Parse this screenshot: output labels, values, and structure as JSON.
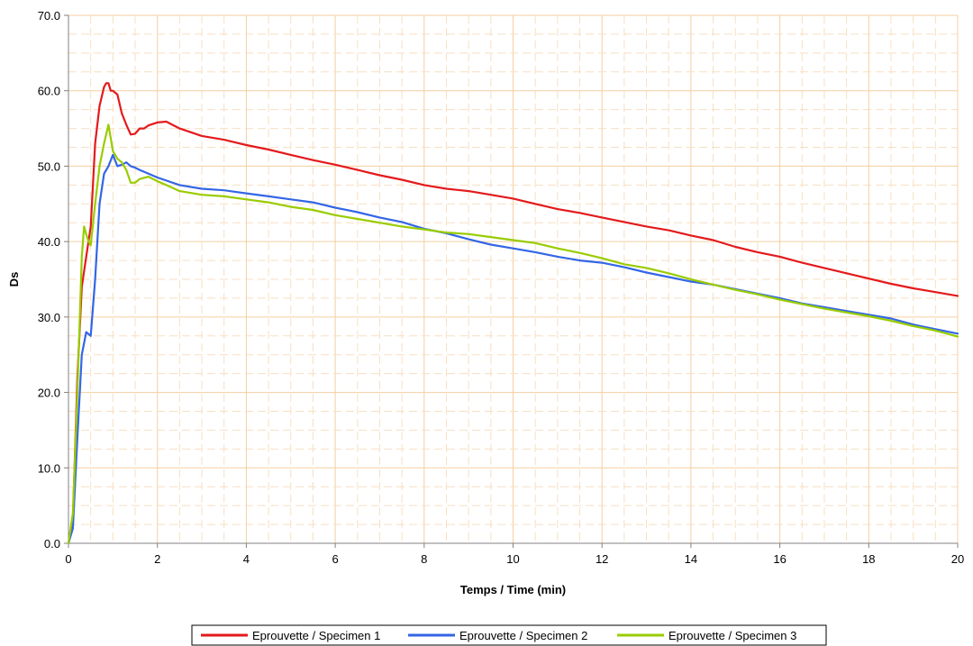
{
  "chart_data": {
    "type": "line",
    "xlabel": "Temps / Time (min)",
    "ylabel": "Ds",
    "xlim": [
      0,
      20
    ],
    "ylim": [
      0,
      70
    ],
    "x_ticks": [
      "0",
      "2",
      "4",
      "6",
      "8",
      "10",
      "12",
      "14",
      "16",
      "18",
      "20"
    ],
    "y_ticks": [
      "0.0",
      "10.0",
      "20.0",
      "30.0",
      "40.0",
      "50.0",
      "60.0",
      "70.0"
    ],
    "grid": true,
    "legend_position": "bottom",
    "colors": {
      "grid_major": "#f5cfa0",
      "grid_minor": "#f8dfc2",
      "axis": "#808080"
    },
    "series": [
      {
        "name": "Eprouvette / Specimen 1",
        "color": "#e31a1c",
        "x": [
          0,
          0.1,
          0.2,
          0.3,
          0.4,
          0.5,
          0.6,
          0.7,
          0.8,
          0.85,
          0.9,
          0.95,
          1.0,
          1.1,
          1.2,
          1.3,
          1.4,
          1.5,
          1.6,
          1.7,
          1.8,
          2.0,
          2.2,
          2.5,
          3,
          3.5,
          4,
          4.5,
          5,
          5.5,
          6,
          6.5,
          7,
          7.5,
          8,
          8.5,
          9,
          9.5,
          10,
          10.5,
          11,
          11.5,
          12,
          12.5,
          13,
          13.5,
          14,
          14.5,
          15,
          15.5,
          16,
          16.5,
          17,
          17.5,
          18,
          18.5,
          19,
          19.5,
          20
        ],
        "y": [
          0,
          3,
          22,
          34,
          38,
          42,
          53,
          58,
          60.5,
          61,
          61,
          60,
          60,
          59.5,
          57,
          55.5,
          54.2,
          54.3,
          55,
          55,
          55.4,
          55.8,
          55.9,
          55,
          54,
          53.5,
          52.8,
          52.2,
          51.5,
          50.8,
          50.2,
          49.5,
          48.8,
          48.2,
          47.5,
          47,
          46.7,
          46.2,
          45.7,
          45,
          44.3,
          43.8,
          43.2,
          42.6,
          42,
          41.5,
          40.8,
          40.2,
          39.3,
          38.6,
          38,
          37.2,
          36.5,
          35.8,
          35.1,
          34.4,
          33.8,
          33.3,
          32.8
        ]
      },
      {
        "name": "Eprouvette / Specimen 2",
        "color": "#3366e6",
        "x": [
          0,
          0.1,
          0.2,
          0.3,
          0.4,
          0.5,
          0.6,
          0.7,
          0.8,
          0.9,
          1.0,
          1.1,
          1.2,
          1.3,
          1.4,
          1.5,
          1.6,
          1.8,
          2.0,
          2.5,
          3,
          3.5,
          4,
          4.5,
          5,
          5.5,
          6,
          6.5,
          7,
          7.5,
          8,
          8.5,
          9,
          9.5,
          10,
          10.5,
          11,
          11.5,
          12,
          12.5,
          13,
          13.5,
          14,
          14.5,
          15,
          15.5,
          16,
          16.5,
          17,
          17.5,
          18,
          18.5,
          19,
          19.5,
          20
        ],
        "y": [
          0,
          2,
          14,
          25,
          28,
          27.5,
          35,
          45,
          49,
          50,
          51.5,
          50,
          50.2,
          50.5,
          50,
          49.8,
          49.5,
          49,
          48.5,
          47.5,
          47,
          46.8,
          46.4,
          46,
          45.6,
          45.2,
          44.5,
          43.9,
          43.2,
          42.6,
          41.7,
          41.1,
          40.3,
          39.6,
          39.1,
          38.6,
          38,
          37.5,
          37.2,
          36.6,
          35.9,
          35.3,
          34.7,
          34.3,
          33.7,
          33.1,
          32.5,
          31.8,
          31.3,
          30.8,
          30.3,
          29.8,
          29,
          28.4,
          27.8
        ]
      },
      {
        "name": "Eprouvette / Specimen 3",
        "color": "#99cc00",
        "x": [
          0,
          0.1,
          0.2,
          0.3,
          0.35,
          0.4,
          0.45,
          0.5,
          0.6,
          0.7,
          0.8,
          0.9,
          1.0,
          1.1,
          1.2,
          1.3,
          1.4,
          1.5,
          1.6,
          1.8,
          2.0,
          2.2,
          2.5,
          3,
          3.5,
          4,
          4.5,
          5,
          5.5,
          6,
          6.5,
          7,
          7.5,
          8,
          8.5,
          9,
          9.5,
          10,
          10.5,
          11,
          11.5,
          12,
          12.5,
          13,
          13.5,
          14,
          14.5,
          15,
          15.5,
          16,
          16.5,
          17,
          17.5,
          18,
          18.5,
          19,
          19.5,
          20
        ],
        "y": [
          0,
          4,
          20,
          38,
          42,
          41,
          40,
          39.5,
          45,
          50,
          53,
          55.5,
          52,
          51,
          50.5,
          49.5,
          47.8,
          47.8,
          48.3,
          48.6,
          48,
          47.5,
          46.7,
          46.2,
          46,
          45.6,
          45.2,
          44.6,
          44.2,
          43.5,
          43,
          42.5,
          42,
          41.6,
          41.2,
          41,
          40.6,
          40.2,
          39.8,
          39.1,
          38.5,
          37.8,
          37,
          36.5,
          35.8,
          35,
          34.3,
          33.6,
          33,
          32.3,
          31.7,
          31.1,
          30.6,
          30.1,
          29.5,
          28.8,
          28.2,
          27.4
        ]
      }
    ]
  }
}
